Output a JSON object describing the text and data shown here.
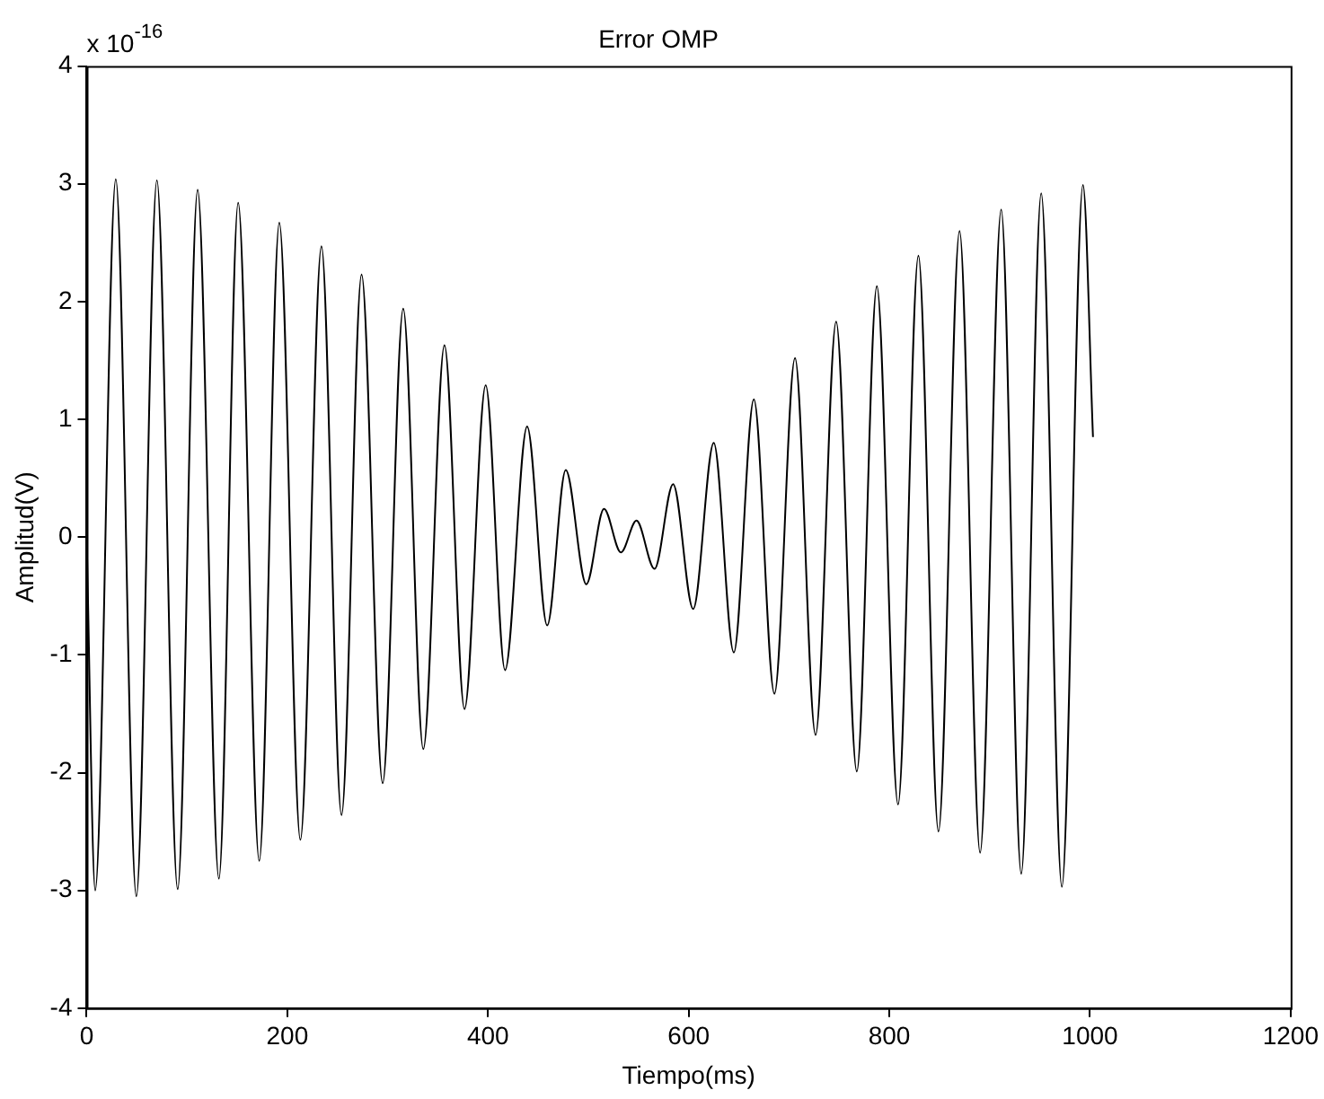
{
  "chart_data": {
    "type": "line",
    "title": "Error OMP",
    "xlabel": "Tiempo(ms)",
    "ylabel": "Amplitud(V)",
    "annotations": [
      "x 10$^{-16}$"
    ],
    "xlim": [
      0,
      1200
    ],
    "xticks": [
      0,
      200,
      400,
      600,
      800,
      1000,
      1200
    ],
    "ylim": [
      -4,
      4
    ],
    "yticks": [
      -4,
      -3,
      -2,
      -1,
      0,
      1,
      2,
      3,
      4
    ],
    "grid": false,
    "legend": false,
    "marker": "none",
    "line_style": "solid",
    "series": [
      {
        "color": "#000000",
        "x": [
          0,
          8.5,
          29,
          49.5,
          70,
          90.7,
          110.6,
          131.8,
          151,
          172,
          192,
          213,
          234,
          254,
          274,
          295,
          315.5,
          335.5,
          356.6,
          376.6,
          397.7,
          417,
          439,
          459,
          477.5,
          498,
          515.6,
          532.5,
          548,
          566,
          584.5,
          604.5,
          625,
          645,
          665,
          685.5,
          706,
          726.5,
          747,
          767.6,
          787.6,
          808.7,
          829,
          849,
          870,
          890.5,
          911.5,
          931.5,
          951.4,
          972,
          993,
          1003
        ],
        "values": [
          0,
          -3.0,
          3.04,
          -3.05,
          3.03,
          -2.99,
          2.95,
          -2.9,
          2.84,
          -2.75,
          2.67,
          -2.57,
          2.47,
          -2.36,
          2.23,
          -2.09,
          1.94,
          -1.8,
          1.63,
          -1.46,
          1.29,
          -1.13,
          0.94,
          -0.75,
          0.57,
          -0.4,
          0.24,
          -0.13,
          0.14,
          -0.27,
          0.45,
          -0.61,
          0.8,
          -0.98,
          1.17,
          -1.33,
          1.52,
          -1.68,
          1.83,
          -1.99,
          2.13,
          -2.27,
          2.39,
          -2.5,
          2.6,
          -2.68,
          2.78,
          -2.86,
          2.92,
          -2.97,
          2.99,
          0.85
        ]
      }
    ]
  }
}
